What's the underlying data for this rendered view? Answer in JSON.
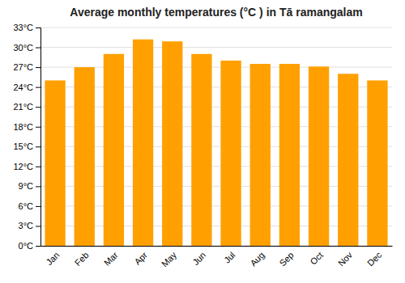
{
  "chart_data": {
    "type": "bar",
    "title": "Average monthly temperatures (°C ) in Tā ramangalam",
    "categories": [
      "Jan",
      "Feb",
      "Mar",
      "Apr",
      "May",
      "Jun",
      "Jul",
      "Aug",
      "Sep",
      "Oct",
      "Nov",
      "Dec"
    ],
    "values": [
      25.0,
      27.0,
      29.0,
      31.2,
      30.9,
      29.0,
      28.0,
      27.5,
      27.5,
      27.1,
      26.0,
      25.0
    ],
    "color": "#FFA000",
    "ylim": [
      0,
      33
    ],
    "yticks": [
      {
        "value": 0,
        "label": "0°C"
      },
      {
        "value": 3,
        "label": "3°C"
      },
      {
        "value": 6,
        "label": "6°C"
      },
      {
        "value": 9,
        "label": "9°C"
      },
      {
        "value": 12,
        "label": "12°C"
      },
      {
        "value": 15,
        "label": "15°C"
      },
      {
        "value": 18,
        "label": "18°C"
      },
      {
        "value": 21,
        "label": "21°C"
      },
      {
        "value": 24,
        "label": "24°C"
      },
      {
        "value": 27,
        "label": "27°C"
      },
      {
        "value": 30,
        "label": "30°C"
      },
      {
        "value": 33,
        "label": "33°C"
      }
    ],
    "grid": true
  }
}
